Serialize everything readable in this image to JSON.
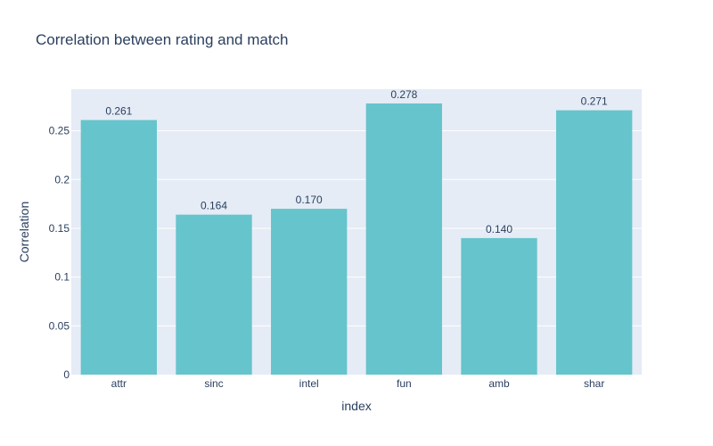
{
  "chart_data": {
    "type": "bar",
    "title": "Correlation between rating and match",
    "xlabel": "index",
    "ylabel": "Correlation",
    "categories": [
      "attr",
      "sinc",
      "intel",
      "fun",
      "amb",
      "shar"
    ],
    "values": [
      0.261,
      0.164,
      0.17,
      0.278,
      0.14,
      0.271
    ],
    "value_labels": [
      "0.261",
      "0.164",
      "0.170",
      "0.278",
      "0.140",
      "0.271"
    ],
    "ylim": [
      0,
      0.2926
    ],
    "yticks": [
      0,
      0.05,
      0.1,
      0.15,
      0.2,
      0.25
    ],
    "ytick_labels": [
      "0",
      "0.05",
      "0.1",
      "0.15",
      "0.2",
      "0.25"
    ],
    "grid": true,
    "colors": {
      "bar": "#66c4cc",
      "plot_background": "#e5ecf6",
      "grid": "#ffffff",
      "text": "#2a3f5f"
    }
  }
}
